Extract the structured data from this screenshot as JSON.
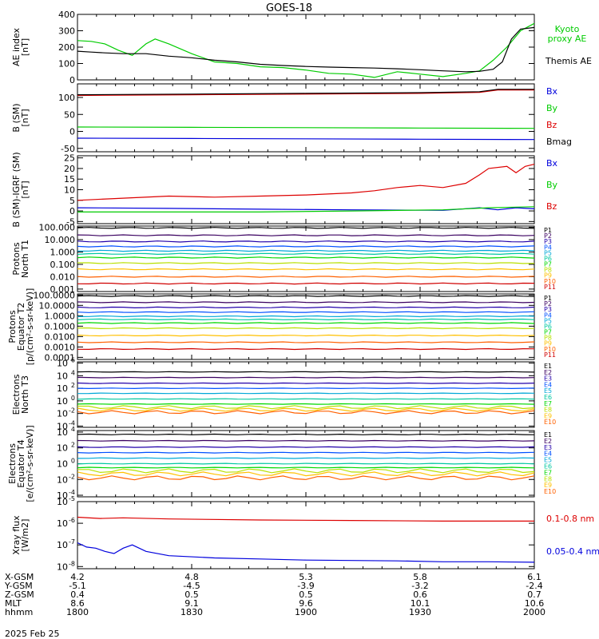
{
  "title": "GOES-18",
  "date_label": "2025 Feb 25",
  "colors": {
    "black": "#000000",
    "green": "#00cc00",
    "blue": "#0000dd",
    "red": "#dd0000",
    "channels": [
      "#000000",
      "#3a0060",
      "#2200aa",
      "#0050ff",
      "#00a8d8",
      "#00c8a0",
      "#00d800",
      "#b8e000",
      "#ffc000",
      "#ff6000",
      "#d00000",
      "#900000"
    ]
  },
  "time_axis": {
    "start_hhmm": "1800",
    "end_hhmm": "2000",
    "ticks": [
      {
        "hhmm": "1800",
        "x_gsm": "4.2",
        "y_gsm": "-5.1",
        "z_gsm": "0.4",
        "mlt": "8.6"
      },
      {
        "hhmm": "1830",
        "x_gsm": "4.8",
        "y_gsm": "-4.5",
        "z_gsm": "0.5",
        "mlt": "9.1"
      },
      {
        "hhmm": "1900",
        "x_gsm": "5.3",
        "y_gsm": "-3.9",
        "z_gsm": "0.5",
        "mlt": "9.6"
      },
      {
        "hhmm": "1930",
        "x_gsm": "5.8",
        "y_gsm": "-3.2",
        "z_gsm": "0.6",
        "mlt": "10.1"
      },
      {
        "hhmm": "2000",
        "x_gsm": "6.1",
        "y_gsm": "-2.4",
        "z_gsm": "0.7",
        "mlt": "10.6"
      }
    ],
    "row_labels": [
      "X-GSM",
      "Y-GSM",
      "Z-GSM",
      "MLT",
      "hhmm"
    ]
  },
  "chart_data": [
    {
      "type": "line",
      "id": "ae",
      "ylabel": [
        "AE index",
        "[nT]"
      ],
      "ylim": [
        0,
        400
      ],
      "yticks": [
        {
          "v": 0,
          "t": "0"
        },
        {
          "v": 100,
          "t": "100"
        },
        {
          "v": 200,
          "t": "200"
        },
        {
          "v": 300,
          "t": "300"
        },
        {
          "v": 400,
          "t": "400"
        }
      ],
      "series": [
        {
          "name": "Kyoto proxy AE",
          "legend": [
            "Kyoto",
            "proxy AE"
          ],
          "color": "#00cc00",
          "x": [
            0,
            3,
            6,
            9,
            12,
            15,
            17,
            20,
            25,
            30,
            35,
            40,
            45,
            50,
            55,
            60,
            65,
            70,
            75,
            80,
            85,
            88,
            91,
            94,
            97,
            100
          ],
          "y": [
            240,
            235,
            220,
            180,
            150,
            220,
            250,
            220,
            160,
            110,
            100,
            80,
            75,
            60,
            40,
            35,
            15,
            50,
            35,
            20,
            40,
            55,
            120,
            200,
            300,
            345
          ]
        },
        {
          "name": "Themis AE",
          "legend": [
            "Themis AE"
          ],
          "color": "#000000",
          "x": [
            0,
            3,
            6,
            10,
            15,
            20,
            25,
            30,
            35,
            40,
            45,
            50,
            55,
            60,
            65,
            70,
            75,
            80,
            85,
            88,
            91,
            93,
            95,
            97,
            100
          ],
          "y": [
            175,
            170,
            165,
            160,
            160,
            145,
            135,
            120,
            110,
            95,
            88,
            82,
            78,
            75,
            72,
            68,
            62,
            55,
            50,
            52,
            65,
            110,
            250,
            310,
            320
          ]
        }
      ]
    },
    {
      "type": "line",
      "id": "bsm",
      "ylabel": [
        "B (SM)",
        "[nT]"
      ],
      "ylim": [
        -60,
        140
      ],
      "yticks": [
        {
          "v": -50,
          "t": "-50"
        },
        {
          "v": 0,
          "t": "0"
        },
        {
          "v": 50,
          "t": "50"
        },
        {
          "v": 100,
          "t": "100"
        }
      ],
      "legend": [
        "Bx",
        "By",
        "Bz",
        "Bmag"
      ],
      "series": [
        {
          "name": "Bx",
          "color": "#0000dd",
          "x": [
            0,
            25,
            50,
            75,
            100
          ],
          "y": [
            -20,
            -21,
            -22,
            -23,
            -24
          ]
        },
        {
          "name": "By",
          "color": "#00cc00",
          "x": [
            0,
            25,
            50,
            75,
            100
          ],
          "y": [
            13,
            12,
            11,
            10,
            9
          ]
        },
        {
          "name": "Bz",
          "color": "#dd0000",
          "x": [
            0,
            25,
            50,
            75,
            88,
            92,
            100
          ],
          "y": [
            106,
            108,
            110,
            112,
            115,
            122,
            122
          ]
        },
        {
          "name": "Bmag",
          "color": "#000000",
          "x": [
            0,
            25,
            50,
            75,
            88,
            92,
            100
          ],
          "y": [
            108,
            110,
            112,
            114,
            117,
            124,
            124
          ]
        }
      ]
    },
    {
      "type": "line",
      "id": "bigrf",
      "ylabel": [
        "B (SM)-IGRF (SM)",
        "[nT]"
      ],
      "ylim": [
        -6,
        26
      ],
      "yticks": [
        {
          "v": -5,
          "t": "-5"
        },
        {
          "v": 0,
          "t": "0"
        },
        {
          "v": 5,
          "t": "5"
        },
        {
          "v": 10,
          "t": "10"
        },
        {
          "v": 15,
          "t": "15"
        },
        {
          "v": 20,
          "t": "20"
        },
        {
          "v": 25,
          "t": "25"
        }
      ],
      "legend": [
        "Bx",
        "By",
        "Bz"
      ],
      "series": [
        {
          "name": "Bx",
          "color": "#0000dd",
          "x": [
            0,
            20,
            40,
            60,
            80,
            88,
            92,
            96,
            100
          ],
          "y": [
            1.5,
            1.2,
            0.8,
            0.5,
            0.3,
            1.5,
            0.5,
            1.5,
            1
          ]
        },
        {
          "name": "By",
          "color": "#00cc00",
          "x": [
            0,
            20,
            40,
            60,
            80,
            90,
            100
          ],
          "y": [
            -0.5,
            -0.5,
            -0.5,
            0,
            0.5,
            1.5,
            2
          ]
        },
        {
          "name": "Bz",
          "color": "#dd0000",
          "x": [
            0,
            10,
            20,
            30,
            40,
            50,
            60,
            65,
            70,
            75,
            80,
            85,
            88,
            90,
            94,
            96,
            98,
            100
          ],
          "y": [
            5,
            6,
            7,
            6.5,
            7,
            7.5,
            8.5,
            9.5,
            11,
            12,
            11,
            13,
            17,
            20,
            21,
            18,
            21,
            22
          ]
        }
      ]
    },
    {
      "type": "line",
      "id": "prot_t1",
      "log": true,
      "ylabel": [
        "Protons",
        "North T1"
      ],
      "ylim": [
        -3.2,
        2.1
      ],
      "yticks": [
        {
          "v": 2,
          "t": "100.000"
        },
        {
          "v": 1,
          "t": "10.000"
        },
        {
          "v": 0,
          "t": "1.000"
        },
        {
          "v": -1,
          "t": "0.100"
        },
        {
          "v": -2,
          "t": "0.010"
        },
        {
          "v": -3,
          "t": "0.001"
        }
      ],
      "channels": [
        "P1",
        "P2",
        "P3",
        "P4",
        "P5",
        "P6",
        "P7",
        "P8",
        "P9",
        "P10",
        "P11"
      ],
      "levels": [
        1.95,
        1.35,
        0.85,
        0.45,
        0.1,
        -0.15,
        -0.45,
        -0.9,
        -1.4,
        -2.0,
        -2.55
      ]
    },
    {
      "type": "line",
      "id": "prot_t2",
      "log": true,
      "ylabel": [
        "Protons",
        "Equator T2",
        "[p/(cm²-s-sr-keV)]"
      ],
      "ylim": [
        -4.2,
        2.1
      ],
      "yticks": [
        {
          "v": 2,
          "t": "100.0000"
        },
        {
          "v": 1,
          "t": "10.0000"
        },
        {
          "v": 0,
          "t": "1.0000"
        },
        {
          "v": -1,
          "t": "0.1000"
        },
        {
          "v": -2,
          "t": "0.0100"
        },
        {
          "v": -3,
          "t": "0.0010"
        },
        {
          "v": -4,
          "t": "0.0001"
        }
      ],
      "channels": [
        "P1",
        "P2",
        "P3",
        "P4",
        "P5",
        "P6",
        "P7",
        "P8",
        "P9",
        "P10",
        "P11"
      ],
      "levels": [
        1.9,
        1.3,
        0.8,
        0.35,
        -0.05,
        -0.35,
        -0.7,
        -1.2,
        -1.9,
        -2.55,
        -3.2
      ]
    },
    {
      "type": "line",
      "id": "elec_t3",
      "log": true,
      "ylabel": [
        "Electrons",
        "North T3"
      ],
      "ylim": [
        -4.2,
        6.2
      ],
      "yticks": [
        {
          "v": 6,
          "t": "10"
        },
        {
          "v": 4,
          "t": "10"
        },
        {
          "v": 2,
          "t": "10"
        },
        {
          "v": 0,
          "t": "10"
        },
        {
          "v": -2,
          "t": "10"
        },
        {
          "v": -4,
          "t": "10"
        }
      ],
      "ytick_exps": [
        "6",
        "4",
        "2",
        "0",
        "-2",
        "-4"
      ],
      "channels": [
        "E1",
        "E2",
        "E3",
        "E4",
        "E5",
        "E6",
        "E7",
        "E8",
        "E9",
        "E10"
      ],
      "levels": [
        4.6,
        3.7,
        2.8,
        2.0,
        1.2,
        0.3,
        -0.5,
        -1.0,
        -1.4,
        -1.8
      ]
    },
    {
      "type": "line",
      "id": "elec_t4",
      "log": true,
      "ylabel": [
        "Electrons",
        "Equator T4",
        "[e/(cm²-s-sr-keV)]"
      ],
      "ylim": [
        -4.2,
        4.2
      ],
      "yticks": [
        {
          "v": 4,
          "t": "10"
        },
        {
          "v": 2,
          "t": "10"
        },
        {
          "v": 0,
          "t": "10"
        },
        {
          "v": -2,
          "t": "10"
        },
        {
          "v": -4,
          "t": "10"
        }
      ],
      "ytick_exps": [
        "4",
        "2",
        "0",
        "-2",
        "-4"
      ],
      "channels": [
        "E1",
        "E2",
        "E3",
        "E4",
        "E5",
        "E6",
        "E7",
        "E8",
        "E9",
        "E10"
      ],
      "levels": [
        3.7,
        2.9,
        2.1,
        1.4,
        0.7,
        0.0,
        -0.5,
        -0.9,
        -1.3,
        -1.8
      ]
    },
    {
      "type": "line",
      "id": "xray",
      "log": true,
      "ylabel": [
        "Xray flux",
        "[W/m2]"
      ],
      "ylim": [
        -8.1,
        -5.0
      ],
      "yticks": [
        {
          "v": -5,
          "t": "10"
        },
        {
          "v": -6,
          "t": "10"
        },
        {
          "v": -7,
          "t": "10"
        },
        {
          "v": -8,
          "t": "10"
        }
      ],
      "ytick_exps": [
        "-5",
        "-6",
        "-7",
        "-8"
      ],
      "series": [
        {
          "name": "0.1-0.8 nm",
          "color": "#dd0000",
          "x": [
            0,
            5,
            10,
            20,
            40,
            60,
            80,
            100
          ],
          "y": [
            -5.72,
            -5.78,
            -5.75,
            -5.8,
            -5.85,
            -5.87,
            -5.9,
            -5.9
          ]
        },
        {
          "name": "0.05-0.4 nm",
          "color": "#0000dd",
          "x": [
            0,
            2,
            4,
            6,
            8,
            10,
            12,
            15,
            20,
            30,
            40,
            50,
            60,
            70,
            80,
            90,
            100
          ],
          "y": [
            -6.9,
            -7.1,
            -7.15,
            -7.3,
            -7.4,
            -7.15,
            -7.0,
            -7.3,
            -7.5,
            -7.6,
            -7.65,
            -7.7,
            -7.72,
            -7.74,
            -7.78,
            -7.78,
            -7.8
          ]
        }
      ]
    }
  ]
}
